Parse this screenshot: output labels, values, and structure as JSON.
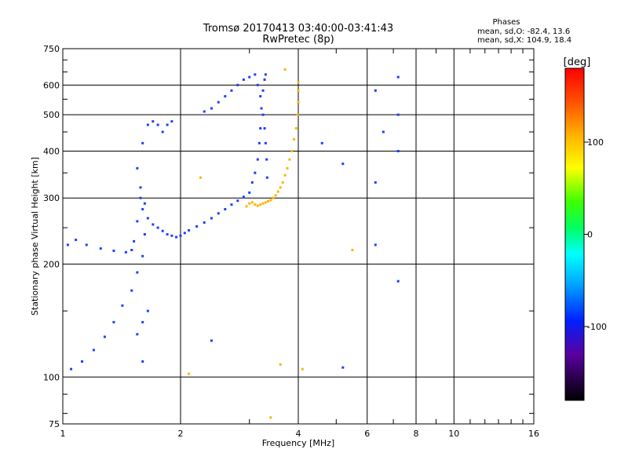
{
  "chart_data": {
    "type": "scatter",
    "title": "Tromsø 20170413 03:40:00-03:41:43",
    "subtitle": "RwPretec (8p)",
    "xlabel": "Frequency [MHz]",
    "ylabel": "Stationary phase Virtual Height [km]",
    "x_scale": "log",
    "y_scale": "log",
    "xlim": [
      1,
      16
    ],
    "ylim": [
      75,
      750
    ],
    "x_ticks": [
      1,
      2,
      4,
      6,
      8,
      10,
      16
    ],
    "x_tick_labels": [
      "1",
      "2",
      "4",
      "6",
      "8",
      "10",
      "16"
    ],
    "y_ticks": [
      75,
      100,
      200,
      300,
      400,
      500,
      600,
      750
    ],
    "y_tick_labels": [
      "75",
      "100",
      "200",
      "300",
      "400",
      "500",
      "600",
      "750"
    ],
    "grid": true,
    "phases_legend": {
      "title": "Phases",
      "line_o": "mean, sd,O: -82.4, 13.6",
      "line_x": "mean, sd,X: 104.9, 18.4"
    },
    "colorbar": {
      "label": "[deg]",
      "range": [
        -180,
        180
      ],
      "tick_values": [
        100,
        0,
        -100
      ],
      "tick_labels": [
        "100",
        "0",
        "-100"
      ]
    },
    "series": [
      {
        "name": "O",
        "point_color": "#1f3fff",
        "x": [
          1.03,
          1.08,
          1.15,
          1.25,
          1.35,
          1.45,
          1.5,
          1.52,
          1.55,
          1.58,
          1.62,
          1.65,
          1.7,
          1.75,
          1.8,
          1.85,
          1.9,
          1.95,
          2.0,
          2.05,
          2.1,
          2.2,
          2.3,
          2.4,
          2.5,
          2.6,
          2.7,
          2.8,
          2.9,
          3.0,
          3.05,
          3.1,
          3.15,
          3.18,
          3.2,
          3.22,
          3.25,
          3.28,
          3.3,
          1.05,
          1.12,
          1.2,
          1.28,
          1.35,
          1.42,
          1.5,
          1.55,
          1.6,
          1.62,
          1.6,
          1.58,
          1.55,
          1.6,
          1.65,
          1.7,
          1.75,
          1.8,
          1.85,
          1.9,
          2.3,
          2.4,
          2.5,
          2.6,
          2.7,
          2.8,
          2.9,
          3.0,
          3.1,
          3.15,
          3.2,
          3.25,
          3.28,
          3.3,
          3.32,
          3.33,
          1.55,
          1.6,
          1.65,
          1.6,
          4.6,
          5.2,
          6.3,
          7.2,
          7.2,
          6.3,
          6.6,
          7.2,
          2.4,
          6.3,
          5.2,
          7.2
        ],
        "y": [
          225,
          232,
          225,
          220,
          217,
          215,
          218,
          230,
          260,
          300,
          290,
          265,
          255,
          250,
          245,
          240,
          238,
          236,
          238,
          242,
          246,
          252,
          258,
          265,
          273,
          280,
          288,
          295,
          302,
          310,
          330,
          350,
          380,
          420,
          460,
          520,
          580,
          620,
          640,
          105,
          110,
          118,
          128,
          140,
          155,
          170,
          190,
          210,
          240,
          280,
          320,
          360,
          420,
          470,
          480,
          470,
          450,
          470,
          480,
          510,
          520,
          540,
          560,
          580,
          600,
          620,
          630,
          640,
          600,
          560,
          500,
          460,
          420,
          380,
          340,
          130,
          140,
          150,
          110,
          420,
          370,
          580,
          630,
          500,
          330,
          450,
          400,
          125,
          225,
          106,
          180
        ]
      },
      {
        "name": "X",
        "point_color": "#ffb400",
        "x": [
          2.95,
          3.0,
          3.05,
          3.1,
          3.15,
          3.2,
          3.25,
          3.3,
          3.35,
          3.4,
          3.45,
          3.5,
          3.55,
          3.6,
          3.65,
          3.7,
          3.75,
          3.8,
          3.85,
          3.9,
          3.95,
          3.98,
          4.0,
          4.0,
          4.0,
          2.1,
          2.25,
          3.4,
          3.6,
          3.7,
          4.1,
          5.5
        ],
        "y": [
          285,
          290,
          292,
          288,
          286,
          288,
          290,
          292,
          294,
          296,
          300,
          305,
          312,
          320,
          330,
          345,
          360,
          380,
          400,
          430,
          460,
          500,
          540,
          580,
          610,
          102,
          340,
          78,
          108,
          660,
          105,
          218
        ]
      }
    ]
  }
}
